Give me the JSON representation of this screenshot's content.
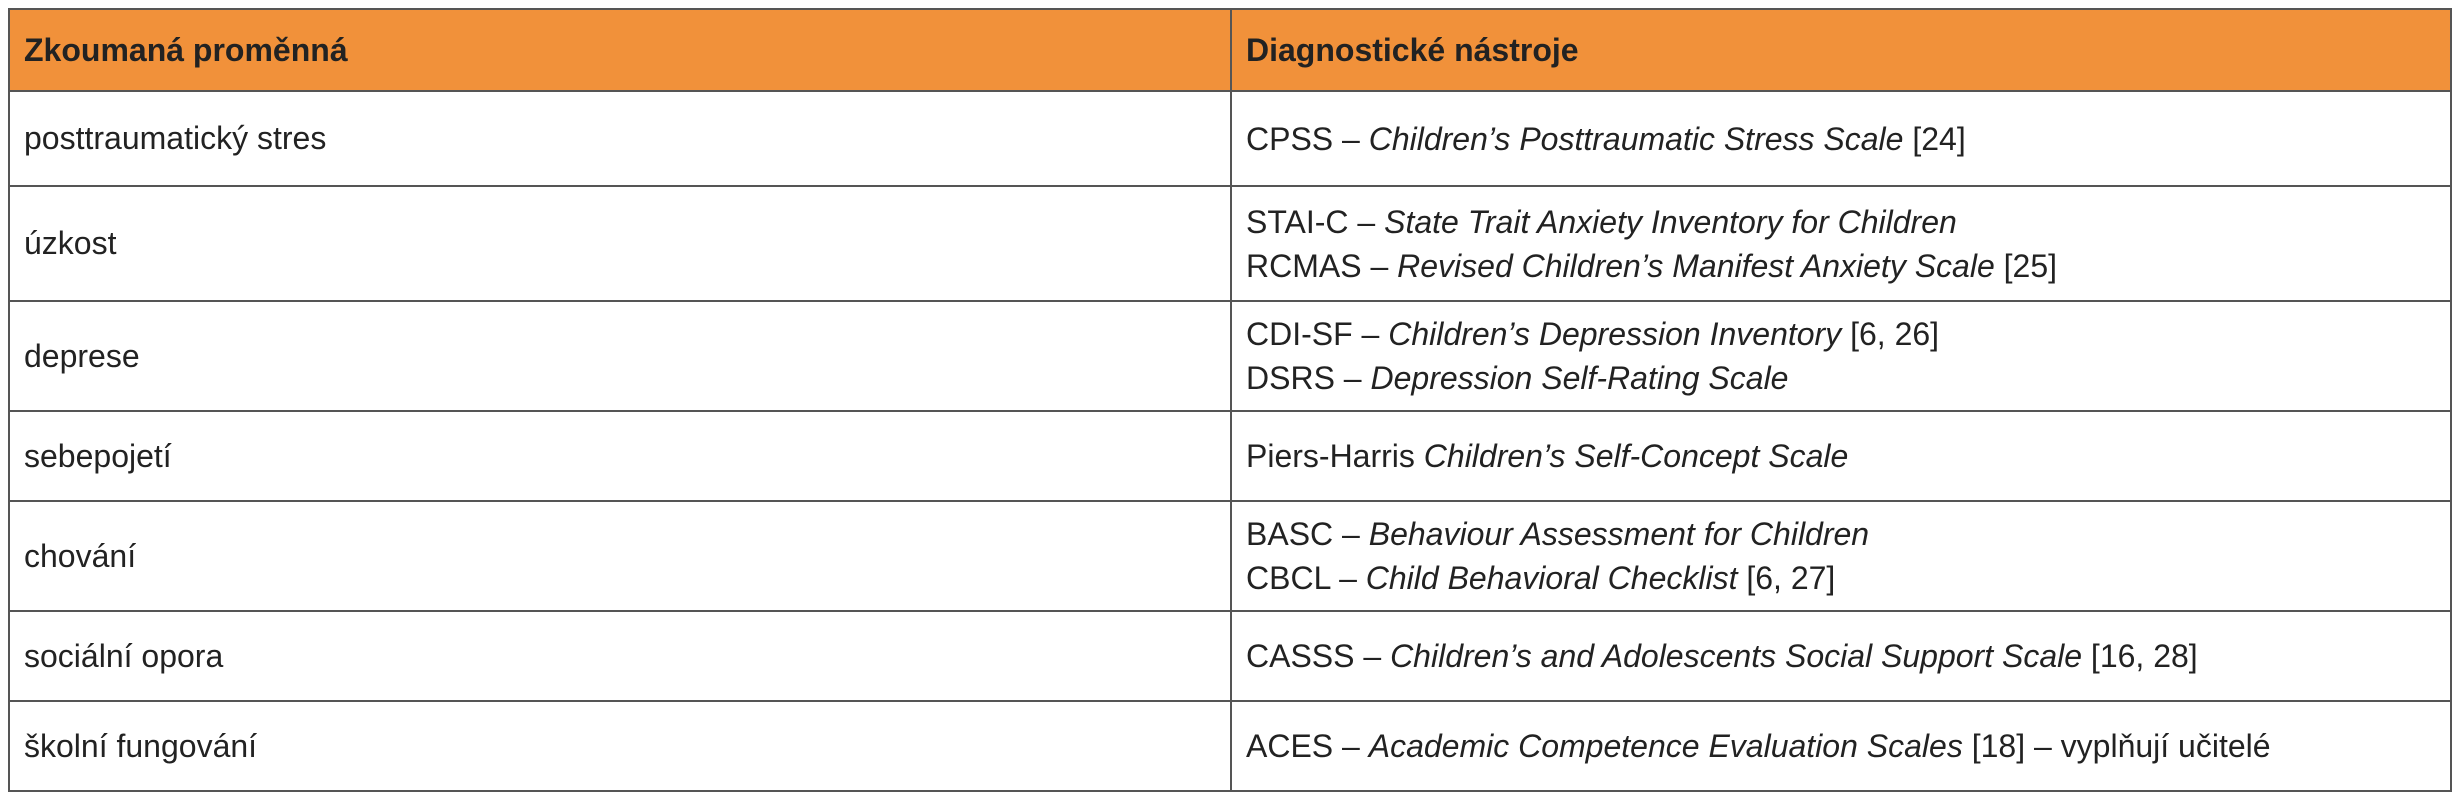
{
  "table": {
    "columns": [
      "Zkoumaná proměnná",
      "Diagnostické nástroje"
    ],
    "rows": [
      {
        "variable": "posttraumatický stres",
        "instruments": [
          [
            {
              "text": "CPSS – ",
              "italic": false
            },
            {
              "text": "Children’s Posttraumatic Stress Scale",
              "italic": true
            },
            {
              "text": " [24]",
              "italic": false
            }
          ]
        ]
      },
      {
        "variable": "úzkost",
        "instruments": [
          [
            {
              "text": "STAI-C – ",
              "italic": false
            },
            {
              "text": "State Trait Anxiety Inventory for Children",
              "italic": true
            }
          ],
          [
            {
              "text": "RCMAS – ",
              "italic": false
            },
            {
              "text": "Revised Children’s Manifest Anxiety Scale",
              "italic": true
            },
            {
              "text": " [25]",
              "italic": false
            }
          ]
        ]
      },
      {
        "variable": "deprese",
        "instruments": [
          [
            {
              "text": "CDI-SF – ",
              "italic": false
            },
            {
              "text": "Children’s Depression Inventory",
              "italic": true
            },
            {
              "text": " [6, 26]",
              "italic": false
            }
          ],
          [
            {
              "text": "DSRS – ",
              "italic": false
            },
            {
              "text": "Depression Self-Rating Scale",
              "italic": true
            }
          ]
        ]
      },
      {
        "variable": "sebepojetí",
        "instruments": [
          [
            {
              "text": "Piers-Harris ",
              "italic": false
            },
            {
              "text": "Children’s Self-Concept Scale",
              "italic": true
            }
          ]
        ]
      },
      {
        "variable": "chování",
        "instruments": [
          [
            {
              "text": "BASC – ",
              "italic": false
            },
            {
              "text": "Behaviour Assessment for Children",
              "italic": true
            }
          ],
          [
            {
              "text": "CBCL – ",
              "italic": false
            },
            {
              "text": "Child Behavioral Checklist",
              "italic": true
            },
            {
              "text": " [6, 27]",
              "italic": false
            }
          ]
        ]
      },
      {
        "variable": "sociální opora",
        "instruments": [
          [
            {
              "text": "CASSS – ",
              "italic": false
            },
            {
              "text": "Children’s and Adolescents Social Support Scale",
              "italic": true
            },
            {
              "text": " [16, 28]",
              "italic": false
            }
          ]
        ]
      },
      {
        "variable": "školní fungování",
        "instruments": [
          [
            {
              "text": "ACES – ",
              "italic": false
            },
            {
              "text": "Academic Competence Evaluation Scales",
              "italic": true
            },
            {
              "text": " [18] – vyplňují učitelé",
              "italic": false
            }
          ]
        ]
      }
    ]
  }
}
